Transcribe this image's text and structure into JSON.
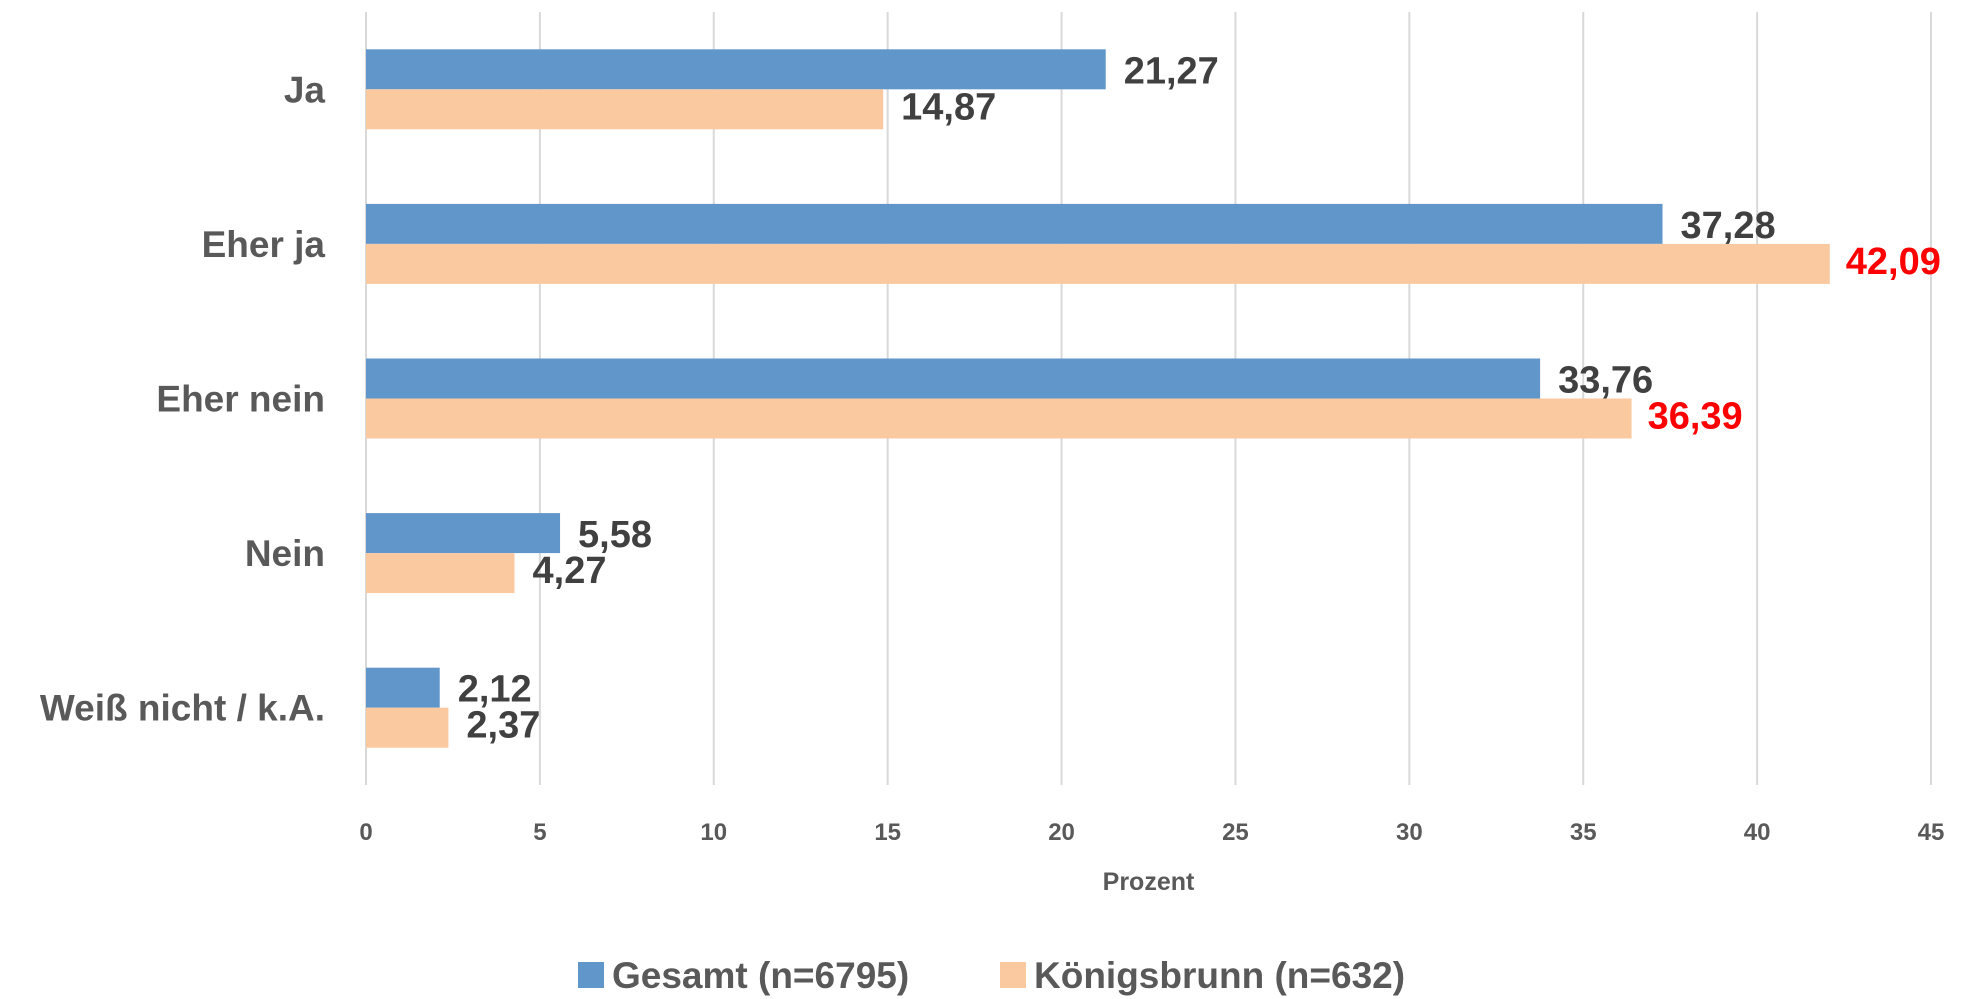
{
  "chart_data": {
    "type": "bar",
    "orientation": "horizontal",
    "categories": [
      "Ja",
      "Eher ja",
      "Eher nein",
      "Nein",
      "Weiß nicht / k.A."
    ],
    "series": [
      {
        "name": "Gesamt (n=6795)",
        "values": [
          21.27,
          37.28,
          33.76,
          5.58,
          2.12
        ],
        "color": "#6196CB",
        "labels": [
          "21,27",
          "37,28",
          "33,76",
          "5,58",
          "2,12"
        ]
      },
      {
        "name": "Königsbrunn (n=632)",
        "values": [
          14.87,
          42.09,
          36.39,
          4.27,
          2.37
        ],
        "color": "#FAC9A0",
        "labels": [
          "14,87",
          "42,09",
          "36,39",
          "4,27",
          "2,37"
        ]
      }
    ],
    "highlighted_labels": [
      "42,09",
      "36,39"
    ],
    "highlight_color": "#FF0000",
    "label_color": "#404040",
    "xlabel": "Prozent",
    "ylabel": "",
    "xlim": [
      0,
      45
    ],
    "xticks": [
      0,
      5,
      10,
      15,
      20,
      25,
      30,
      35,
      40,
      45
    ],
    "grid": true,
    "grid_color": "#D9D9D9",
    "legend_position": "bottom"
  }
}
